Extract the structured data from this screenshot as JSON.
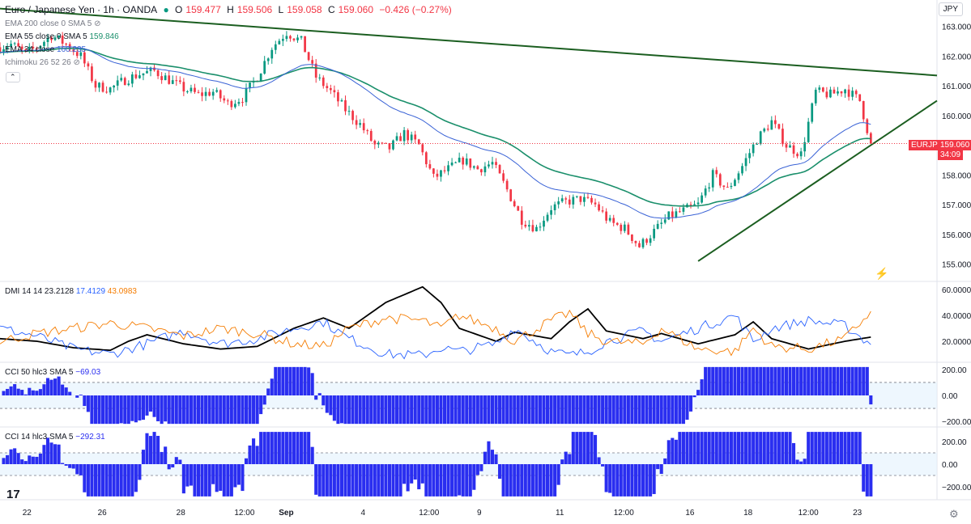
{
  "header": {
    "symbol": "Euro / Japanese Yen · 1h · OANDA",
    "open_label": "O",
    "open": "159.477",
    "high_label": "H",
    "high": "159.506",
    "low_label": "L",
    "low": "159.058",
    "close_label": "C",
    "close": "159.060",
    "change": "−0.426 (−0.27%)"
  },
  "indicators": {
    "ema200": {
      "label": "EMA 200 close 0 SMA 5",
      "value": ""
    },
    "ema55": {
      "label": "EMA 55 close 0 SMA 5",
      "value": "159.846"
    },
    "ema34": {
      "label": "EMA 34 close",
      "value": "160.235"
    },
    "ichimoku": {
      "label": "Ichimoku 26 52 26"
    }
  },
  "currency_button": "JPY",
  "price_tag": {
    "symbol": "EURJPY",
    "price": "159.060",
    "countdown": "34:09"
  },
  "dmi": {
    "label": "DMI 14 14",
    "adx": "23.2128",
    "plus_di": "17.4129",
    "minus_di": "43.0983"
  },
  "cci50": {
    "label": "CCI 50 hlc3 SMA 5",
    "value": "−69.03"
  },
  "cci14": {
    "label": "CCI 14 hlc3 SMA 5",
    "value": "−292.31"
  },
  "colors": {
    "up": "#089981",
    "down": "#f23645",
    "trendline": "#1b5e20",
    "ema55": "#1a8f6b",
    "ema34": "#3a63d6",
    "dmi_adx": "#000000",
    "dmi_plus": "#2962ff",
    "dmi_minus": "#f57c00",
    "cci": "#2a2ef0"
  },
  "chart_data": [
    {
      "type": "candlestick",
      "title": "Euro / Japanese Yen · 1h · OANDA",
      "ylim": [
        154.5,
        163.4
      ],
      "y_ticks": [
        "163.000",
        "162.000",
        "161.000",
        "160.000",
        "159.000",
        "158.000",
        "157.000",
        "156.000",
        "155.000"
      ],
      "x_ticks": [
        "22",
        "26",
        "28",
        "12:00",
        "Sep",
        "4",
        "12:00",
        "9",
        "11",
        "12:00",
        "16",
        "18",
        "12:00",
        "23"
      ],
      "close_path": [
        {
          "t": 0,
          "v": 162.3
        },
        {
          "t": 3,
          "v": 162.4
        },
        {
          "t": 7,
          "v": 162.1
        },
        {
          "t": 10,
          "v": 162.3
        },
        {
          "t": 14,
          "v": 162.7
        },
        {
          "t": 18,
          "v": 162.4
        },
        {
          "t": 22,
          "v": 162.0
        },
        {
          "t": 26,
          "v": 161.0
        },
        {
          "t": 30,
          "v": 160.9
        },
        {
          "t": 34,
          "v": 161.2
        },
        {
          "t": 38,
          "v": 161.4
        },
        {
          "t": 42,
          "v": 161.5
        },
        {
          "t": 46,
          "v": 161.2
        },
        {
          "t": 50,
          "v": 160.9
        },
        {
          "t": 54,
          "v": 160.7
        },
        {
          "t": 58,
          "v": 160.8
        },
        {
          "t": 62,
          "v": 160.4
        },
        {
          "t": 66,
          "v": 160.6
        },
        {
          "t": 70,
          "v": 161.3
        },
        {
          "t": 74,
          "v": 162.3
        },
        {
          "t": 78,
          "v": 162.8
        },
        {
          "t": 82,
          "v": 162.5
        },
        {
          "t": 86,
          "v": 161.3
        },
        {
          "t": 90,
          "v": 160.8
        },
        {
          "t": 94,
          "v": 160.2
        },
        {
          "t": 98,
          "v": 159.7
        },
        {
          "t": 102,
          "v": 159.0
        },
        {
          "t": 106,
          "v": 158.9
        },
        {
          "t": 110,
          "v": 159.4
        },
        {
          "t": 114,
          "v": 159.0
        },
        {
          "t": 118,
          "v": 157.9
        },
        {
          "t": 122,
          "v": 158.2
        },
        {
          "t": 126,
          "v": 158.5
        },
        {
          "t": 130,
          "v": 158.2
        },
        {
          "t": 134,
          "v": 158.4
        },
        {
          "t": 138,
          "v": 157.5
        },
        {
          "t": 142,
          "v": 156.5
        },
        {
          "t": 146,
          "v": 156.2
        },
        {
          "t": 150,
          "v": 156.9
        },
        {
          "t": 154,
          "v": 157.1
        },
        {
          "t": 158,
          "v": 157.2
        },
        {
          "t": 162,
          "v": 157.0
        },
        {
          "t": 166,
          "v": 156.4
        },
        {
          "t": 170,
          "v": 156.2
        },
        {
          "t": 174,
          "v": 155.6
        },
        {
          "t": 178,
          "v": 156.1
        },
        {
          "t": 182,
          "v": 156.6
        },
        {
          "t": 186,
          "v": 156.8
        },
        {
          "t": 190,
          "v": 157.0
        },
        {
          "t": 194,
          "v": 158.0
        },
        {
          "t": 198,
          "v": 157.5
        },
        {
          "t": 202,
          "v": 158.3
        },
        {
          "t": 206,
          "v": 159.2
        },
        {
          "t": 210,
          "v": 159.8
        },
        {
          "t": 214,
          "v": 159.0
        },
        {
          "t": 218,
          "v": 158.7
        },
        {
          "t": 222,
          "v": 160.8
        },
        {
          "t": 226,
          "v": 160.7
        },
        {
          "t": 230,
          "v": 160.9
        },
        {
          "t": 234,
          "v": 160.5
        },
        {
          "t": 237,
          "v": 159.06
        }
      ],
      "series": [
        {
          "name": "EMA 55 close 0 SMA 5",
          "last": 159.846
        },
        {
          "name": "EMA 34 close",
          "last": 160.235
        }
      ],
      "trendlines": [
        {
          "from": {
            "t": 0,
            "v": 163.6
          },
          "to": {
            "t": 255,
            "v": 161.35
          }
        },
        {
          "from": {
            "t": 190,
            "v": 155.1
          },
          "to": {
            "t": 255,
            "v": 160.5
          }
        }
      ],
      "last_price": 159.06
    },
    {
      "type": "line",
      "title": "DMI 14 14",
      "ylim": [
        5,
        65
      ],
      "y_ticks": [
        "60.0000",
        "40.0000",
        "20.0000"
      ],
      "series": [
        {
          "name": "ADX",
          "last": 23.2128,
          "points": [
            [
              0,
              22
            ],
            [
              10,
              20
            ],
            [
              20,
              15
            ],
            [
              30,
              13
            ],
            [
              35,
              20
            ],
            [
              40,
              25
            ],
            [
              50,
              18
            ],
            [
              60,
              14
            ],
            [
              70,
              16
            ],
            [
              80,
              30
            ],
            [
              88,
              38
            ],
            [
              95,
              30
            ],
            [
              105,
              50
            ],
            [
              115,
              62
            ],
            [
              120,
              50
            ],
            [
              125,
              30
            ],
            [
              135,
              20
            ],
            [
              140,
              27
            ],
            [
              150,
              22
            ],
            [
              155,
              35
            ],
            [
              160,
              45
            ],
            [
              165,
              28
            ],
            [
              175,
              22
            ],
            [
              180,
              26
            ],
            [
              190,
              18
            ],
            [
              200,
              25
            ],
            [
              205,
              35
            ],
            [
              210,
              22
            ],
            [
              220,
              14
            ],
            [
              230,
              20
            ],
            [
              237,
              23.2
            ]
          ]
        },
        {
          "name": "+DI",
          "last": 17.4129,
          "points": [
            [
              0,
              30
            ],
            [
              10,
              24
            ],
            [
              20,
              14
            ],
            [
              30,
              10
            ],
            [
              40,
              18
            ],
            [
              50,
              28
            ],
            [
              60,
              18
            ],
            [
              70,
              22
            ],
            [
              80,
              30
            ],
            [
              88,
              35
            ],
            [
              95,
              22
            ],
            [
              105,
              10
            ],
            [
              115,
              9
            ],
            [
              120,
              15
            ],
            [
              125,
              12
            ],
            [
              135,
              18
            ],
            [
              140,
              30
            ],
            [
              150,
              12
            ],
            [
              155,
              9
            ],
            [
              160,
              12
            ],
            [
              165,
              20
            ],
            [
              175,
              28
            ],
            [
              180,
              20
            ],
            [
              190,
              30
            ],
            [
              200,
              40
            ],
            [
              205,
              20
            ],
            [
              210,
              30
            ],
            [
              220,
              36
            ],
            [
              230,
              32
            ],
            [
              237,
              17.4
            ]
          ]
        },
        {
          "name": "−DI",
          "last": 43.0983,
          "points": [
            [
              0,
              20
            ],
            [
              10,
              26
            ],
            [
              20,
              30
            ],
            [
              30,
              34
            ],
            [
              40,
              30
            ],
            [
              50,
              24
            ],
            [
              60,
              30
            ],
            [
              70,
              26
            ],
            [
              80,
              18
            ],
            [
              88,
              16
            ],
            [
              95,
              30
            ],
            [
              105,
              38
            ],
            [
              115,
              36
            ],
            [
              120,
              30
            ],
            [
              125,
              40
            ],
            [
              135,
              30
            ],
            [
              140,
              20
            ],
            [
              150,
              36
            ],
            [
              155,
              42
            ],
            [
              160,
              26
            ],
            [
              165,
              20
            ],
            [
              175,
              18
            ],
            [
              180,
              30
            ],
            [
              190,
              14
            ],
            [
              200,
              12
            ],
            [
              205,
              30
            ],
            [
              210,
              16
            ],
            [
              220,
              14
            ],
            [
              230,
              22
            ],
            [
              237,
              43.1
            ]
          ]
        }
      ]
    },
    {
      "type": "histogram",
      "title": "CCI 50 hlc3 SMA 5",
      "ylim": [
        -230,
        230
      ],
      "y_ticks": [
        "200.00",
        "0.00",
        "−200.00"
      ],
      "band": [
        -100,
        100
      ],
      "last": -69.03
    },
    {
      "type": "histogram",
      "title": "CCI 14 hlc3 SMA 5",
      "ylim": [
        -300,
        300
      ],
      "y_ticks": [
        "200.00",
        "0.00",
        "−200.00"
      ],
      "band": [
        -100,
        100
      ],
      "last": -292.31
    }
  ]
}
